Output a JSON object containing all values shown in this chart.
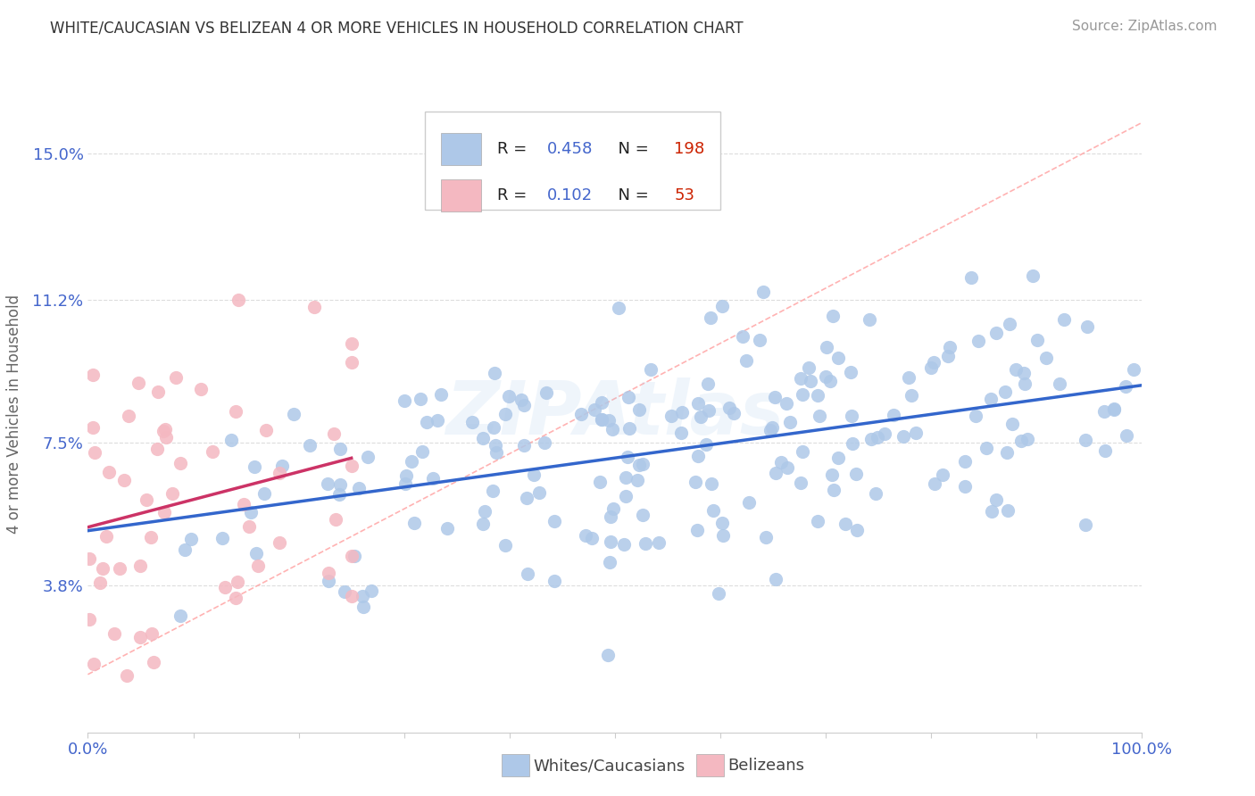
{
  "title": "WHITE/CAUCASIAN VS BELIZEAN 4 OR MORE VEHICLES IN HOUSEHOLD CORRELATION CHART",
  "source": "Source: ZipAtlas.com",
  "ylabel": "4 or more Vehicles in Household",
  "xlim": [
    0,
    100
  ],
  "ylim": [
    0,
    16.5
  ],
  "yticks": [
    3.8,
    7.5,
    11.2,
    15.0
  ],
  "ytick_labels": [
    "3.8%",
    "7.5%",
    "11.2%",
    "15.0%"
  ],
  "xticks": [
    0,
    10,
    20,
    30,
    40,
    50,
    60,
    70,
    80,
    90,
    100
  ],
  "xtick_labels": [
    "0.0%",
    "",
    "",
    "",
    "",
    "",
    "",
    "",
    "",
    "",
    "100.0%"
  ],
  "blue_R": 0.458,
  "blue_N": 198,
  "pink_R": 0.102,
  "pink_N": 53,
  "blue_dot_color": "#aec8e8",
  "blue_dot_edge": "#aec8e8",
  "pink_dot_color": "#f4b8c1",
  "pink_dot_edge": "#f4b8c1",
  "blue_line_color": "#3366cc",
  "pink_line_color": "#cc3366",
  "dashed_line_color": "#ffaaaa",
  "legend_label_blue": "Whites/Caucasians",
  "legend_label_pink": "Belizeans",
  "axis_color": "#4466cc",
  "background_color": "#ffffff",
  "watermark": "ZIPAtlas",
  "grid_color": "#dddddd",
  "blue_scatter_seed": 42,
  "pink_scatter_seed": 7
}
